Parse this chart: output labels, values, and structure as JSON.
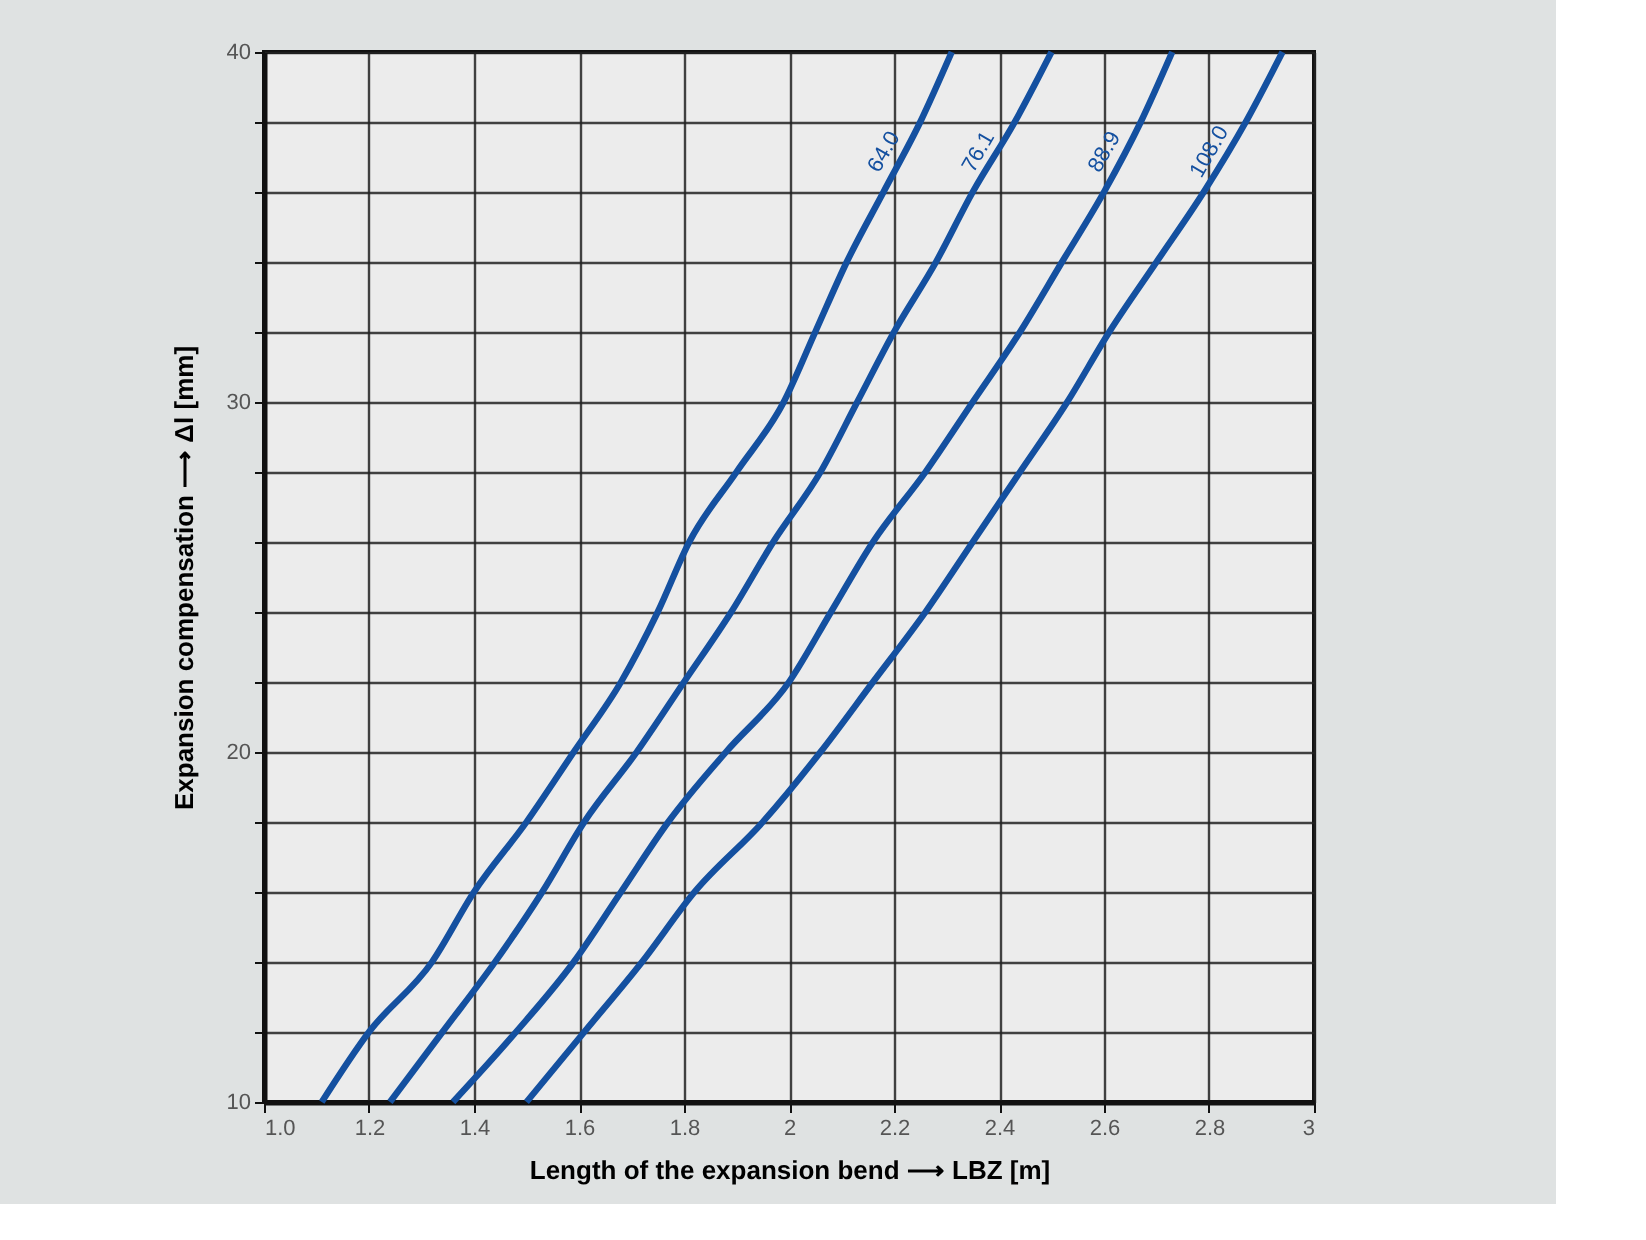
{
  "chart_data": {
    "type": "line",
    "xlabel": "Length of the expansion bend ⟶ LBZ [m]",
    "ylabel": "Expansion compensation ⟶ Δl [mm]",
    "xlim": [
      1.0,
      3.0
    ],
    "xticks": [
      {
        "value": 1.0,
        "label": "1.0"
      },
      1.2,
      1.4,
      1.6,
      1.8,
      2,
      2.2,
      2.4,
      2.6,
      2.8,
      3
    ],
    "ylim": [
      10,
      40
    ],
    "yticks": [
      10,
      {
        "value": 12,
        "label": null
      },
      {
        "value": 14,
        "label": null
      },
      {
        "value": 16,
        "label": null
      },
      {
        "value": 18,
        "label": null
      },
      20,
      {
        "value": 22,
        "label": null
      },
      {
        "value": 24,
        "label": null
      },
      {
        "value": 26,
        "label": null
      },
      {
        "value": 28,
        "label": null
      },
      30,
      {
        "value": 32,
        "label": null
      },
      {
        "value": 34,
        "label": null
      },
      {
        "value": 36,
        "label": null
      },
      {
        "value": 38,
        "label": null
      },
      40
    ],
    "grid": true,
    "marker": "none",
    "line_style": "solid",
    "legend": false,
    "series": [
      {
        "name": "64.0",
        "color": "#1450a0",
        "x": [
          1.11,
          1.2,
          1.32,
          1.4,
          1.5,
          1.59,
          1.68,
          1.75,
          1.81,
          1.9,
          1.99,
          2.05,
          2.11,
          2.18,
          2.25,
          2.31
        ],
        "values": [
          10,
          12,
          14,
          16,
          18,
          20,
          22,
          24,
          26,
          28,
          30,
          32,
          34,
          36,
          38,
          40
        ]
      },
      {
        "name": "76.1",
        "color": "#1450a0",
        "x": [
          1.24,
          1.34,
          1.44,
          1.53,
          1.61,
          1.71,
          1.8,
          1.89,
          1.97,
          2.06,
          2.13,
          2.2,
          2.28,
          2.35,
          2.43,
          2.5
        ],
        "values": [
          10,
          12,
          14,
          16,
          18,
          20,
          22,
          24,
          26,
          28,
          30,
          32,
          34,
          36,
          38,
          40
        ]
      },
      {
        "name": "88.9",
        "color": "#1450a0",
        "x": [
          1.36,
          1.48,
          1.59,
          1.68,
          1.77,
          1.88,
          2.0,
          2.08,
          2.16,
          2.26,
          2.35,
          2.44,
          2.52,
          2.6,
          2.67,
          2.73
        ],
        "values": [
          10,
          12,
          14,
          16,
          18,
          20,
          22,
          24,
          26,
          28,
          30,
          32,
          34,
          36,
          38,
          40
        ]
      },
      {
        "name": "108.0",
        "color": "#1450a0",
        "x": [
          1.5,
          1.61,
          1.72,
          1.82,
          1.95,
          2.06,
          2.16,
          2.26,
          2.35,
          2.44,
          2.53,
          2.61,
          2.7,
          2.79,
          2.87,
          2.94
        ],
        "values": [
          10,
          12,
          14,
          16,
          18,
          20,
          22,
          24,
          26,
          28,
          30,
          32,
          34,
          36,
          38,
          40
        ]
      }
    ]
  }
}
